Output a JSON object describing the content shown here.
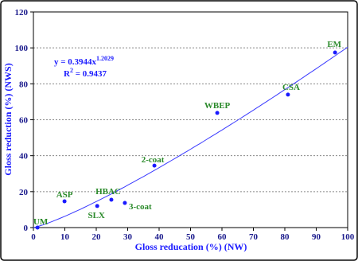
{
  "chart_data": {
    "type": "scatter",
    "x_label": "Gloss reducation (%) (NW)",
    "y_label": "Gloss reduction (%) (NWS)",
    "series": [
      {
        "color": "#1a1aff",
        "label_color": "#2a8a2a",
        "labels": [
          "UM",
          "ASP",
          "SLX",
          "HBAC",
          "3-coat",
          "2-coat",
          "WBEP",
          "CSA",
          "EM"
        ],
        "x": [
          1.3,
          9.9,
          20.3,
          24.8,
          29.1,
          38.5,
          58.5,
          81,
          96
        ],
        "values": [
          0,
          14.6,
          12,
          15.5,
          13.7,
          34.5,
          63.8,
          74,
          97.4
        ]
      }
    ],
    "fit": {
      "lhs": "y = ",
      "coefficient": 0.3944,
      "variable": "x",
      "exponent": 1.2029,
      "r_symbol": "R",
      "r_power": 2,
      "r_equals": " = ",
      "r2": 0.9437,
      "color": "#3a3aff"
    },
    "xlim": [
      0,
      100
    ],
    "xticks": [
      0,
      10,
      20,
      30,
      40,
      50,
      60,
      70,
      80,
      90,
      100
    ],
    "ylim": [
      0,
      120
    ],
    "yticks": [
      0,
      20,
      40,
      60,
      80,
      100,
      120
    ],
    "grid": "y"
  }
}
